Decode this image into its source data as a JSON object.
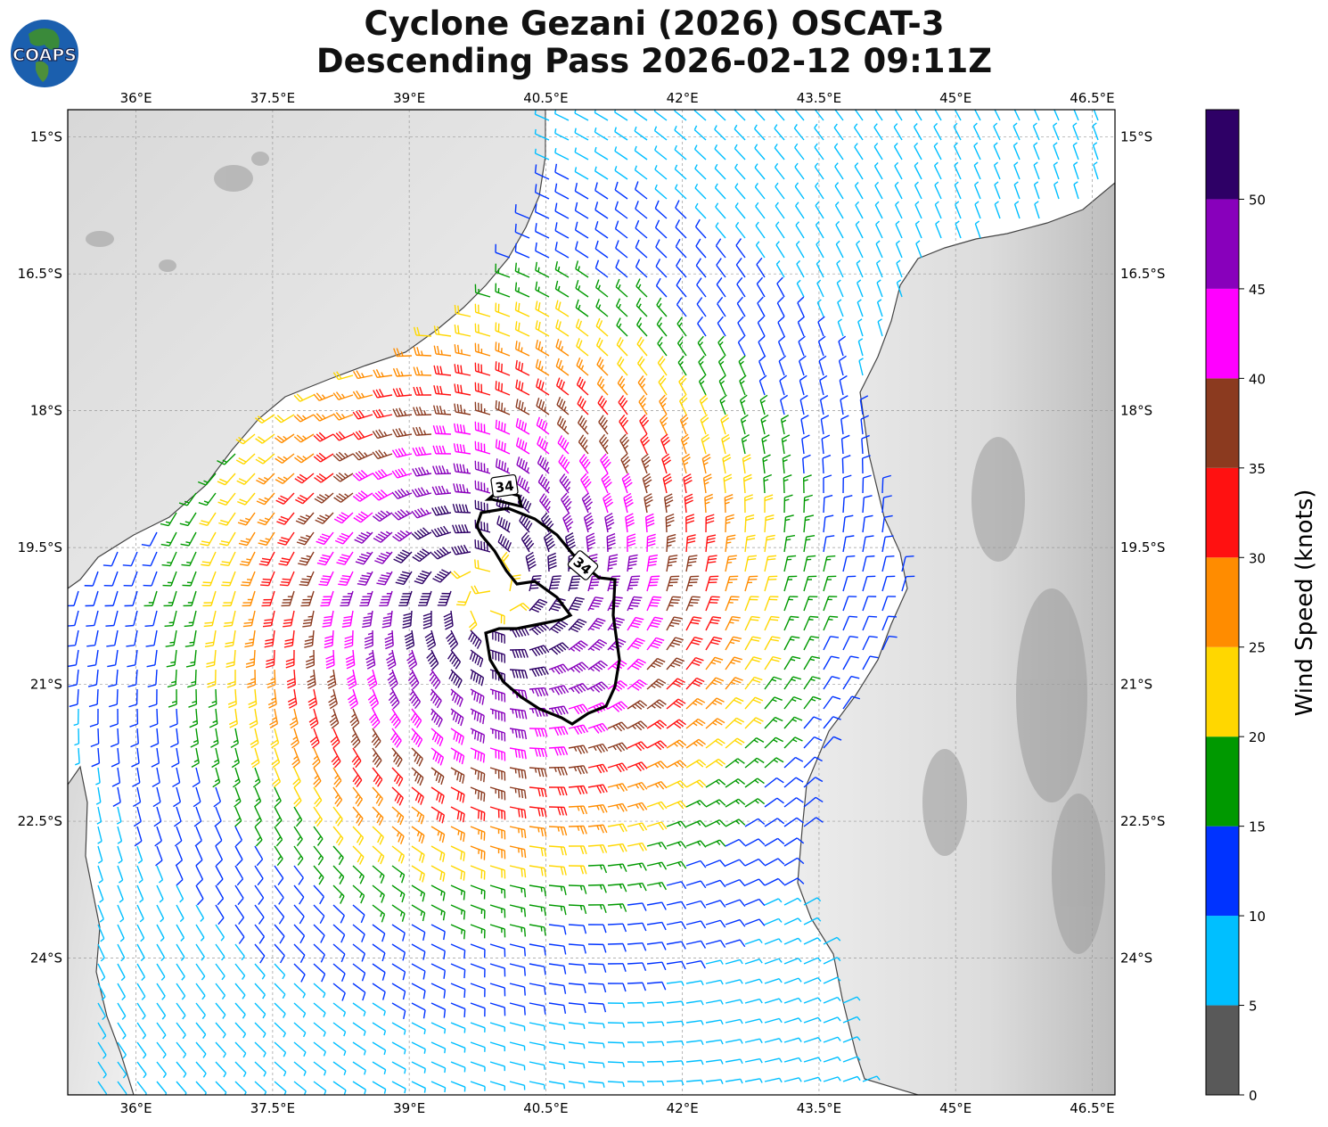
{
  "title": {
    "line1": "Cyclone Gezani (2026) OSCAT-3",
    "line2": "Descending Pass 2026-02-12 09:11Z"
  },
  "logo": {
    "text": "COAPS",
    "icon": "globe-logo"
  },
  "axes": {
    "lon_labels": [
      "36°E",
      "37.5°E",
      "39°E",
      "40.5°E",
      "42°E",
      "43.5°E",
      "45°E",
      "46.5°E"
    ],
    "lat_labels": [
      "15°S",
      "16.5°S",
      "18°S",
      "19.5°S",
      "21°S",
      "22.5°S",
      "24°S"
    ],
    "lon_range": [
      35.25,
      46.75
    ],
    "lat_range": [
      -25.5,
      -14.7
    ],
    "grid": true
  },
  "colorbar": {
    "label": "Wind Speed (knots)",
    "ticks": [
      "0",
      "5",
      "10",
      "15",
      "20",
      "25",
      "30",
      "35",
      "40",
      "45",
      "50"
    ],
    "bins": [
      {
        "min": 0,
        "max": 5,
        "color": "#595959"
      },
      {
        "min": 5,
        "max": 10,
        "color": "#00bfff"
      },
      {
        "min": 10,
        "max": 15,
        "color": "#0033ff"
      },
      {
        "min": 15,
        "max": 20,
        "color": "#009900"
      },
      {
        "min": 20,
        "max": 25,
        "color": "#ffd700"
      },
      {
        "min": 25,
        "max": 30,
        "color": "#ff8c00"
      },
      {
        "min": 30,
        "max": 35,
        "color": "#ff1111"
      },
      {
        "min": 35,
        "max": 40,
        "color": "#8b3a1f"
      },
      {
        "min": 40,
        "max": 45,
        "color": "#ff00ff"
      },
      {
        "min": 45,
        "max": 50,
        "color": "#8800bb"
      },
      {
        "min": 50,
        "max": 55,
        "color": "#2e0066"
      }
    ]
  },
  "storm": {
    "center_lat": -20.0,
    "center_lon": 39.9,
    "contour_labels": [
      "34",
      "34"
    ],
    "contour_kt": 34
  },
  "colors": {
    "land": "#e6e6e6",
    "ocean": "#ffffff",
    "coastline": "#444444",
    "contour": "#000000"
  }
}
